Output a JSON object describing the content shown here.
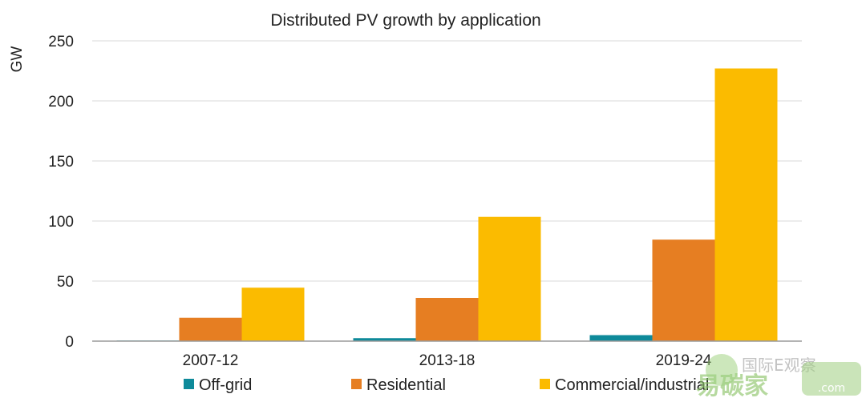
{
  "chart_data": {
    "type": "bar",
    "title": "Distributed PV growth by application",
    "ylabel": "GW",
    "xlabel": "",
    "ylim": [
      0,
      250
    ],
    "yticks": [
      0,
      50,
      100,
      150,
      200,
      250
    ],
    "grid": true,
    "legend_position": "bottom",
    "categories": [
      "2007-12",
      "2013-18",
      "2019-24"
    ],
    "series": [
      {
        "name": "Off-grid",
        "color": "#0e8a9a",
        "values": [
          0.5,
          2.5,
          5
        ]
      },
      {
        "name": "Residential",
        "color": "#e67e22",
        "values": [
          19.5,
          36,
          84.5
        ]
      },
      {
        "name": "Commercial/industrial",
        "color": "#fbbb00",
        "values": [
          44.5,
          103.5,
          227
        ]
      }
    ]
  },
  "watermark": {
    "text_cn": "国际E观察",
    "text_logo": "易碳家",
    "text_url": ".com"
  }
}
